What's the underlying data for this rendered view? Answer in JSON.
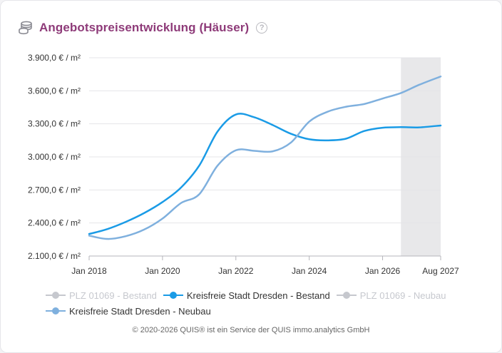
{
  "header": {
    "title": "Angebotspreisentwicklung (Häuser)",
    "help_label": "?"
  },
  "legend": [
    {
      "label": "PLZ 01069 - Bestand",
      "color": "#c6c8ce",
      "active": false
    },
    {
      "label": "Kreisfreie Stadt Dresden - Bestand",
      "color": "#1a9be6",
      "active": true
    },
    {
      "label": "PLZ 01069 - Neubau",
      "color": "#c6c8ce",
      "active": false
    },
    {
      "label": "Kreisfreie Stadt Dresden - Neubau",
      "color": "#7fb0de",
      "active": true
    }
  ],
  "footer": "© 2020-2026 QUIS® ist ein Service der QUIS immo.analytics GmbH",
  "chart_data": {
    "type": "line",
    "title": "Angebotspreisentwicklung (Häuser)",
    "ylim": [
      2100,
      3900
    ],
    "yticks": [
      2100,
      2400,
      2700,
      3000,
      3300,
      3600,
      3900
    ],
    "ytick_labels": [
      "2.100,0 € / m²",
      "2.400,0 € / m²",
      "2.700,0 € / m²",
      "3.000,0 € / m²",
      "3.300,0 € / m²",
      "3.600,0 € / m²",
      "3.900,0 € / m²"
    ],
    "xlim": [
      "2018-01",
      "2027-08"
    ],
    "xticks": [
      "2018-01",
      "2020-01",
      "2022-01",
      "2024-01",
      "2026-01",
      "2027-08"
    ],
    "xtick_labels": [
      "Jan 2018",
      "Jan 2020",
      "Jan 2022",
      "Jan 2024",
      "Jan 2026",
      "Aug 2027"
    ],
    "forecast_band": [
      "2026-07",
      "2027-08"
    ],
    "grid": true,
    "series": [
      {
        "name": "Kreisfreie Stadt Dresden - Bestand",
        "color": "#1a9be6",
        "points": [
          [
            "2018-01",
            2300
          ],
          [
            "2018-07",
            2345
          ],
          [
            "2019-01",
            2410
          ],
          [
            "2019-07",
            2490
          ],
          [
            "2020-01",
            2590
          ],
          [
            "2020-07",
            2720
          ],
          [
            "2021-01",
            2920
          ],
          [
            "2021-07",
            3230
          ],
          [
            "2022-01",
            3385
          ],
          [
            "2022-07",
            3360
          ],
          [
            "2023-01",
            3290
          ],
          [
            "2023-07",
            3210
          ],
          [
            "2024-01",
            3160
          ],
          [
            "2024-07",
            3150
          ],
          [
            "2025-01",
            3165
          ],
          [
            "2025-07",
            3235
          ],
          [
            "2026-01",
            3265
          ],
          [
            "2026-07",
            3270
          ],
          [
            "2027-01",
            3268
          ],
          [
            "2027-08",
            3285
          ]
        ]
      },
      {
        "name": "Kreisfreie Stadt Dresden - Neubau",
        "color": "#7fb0de",
        "points": [
          [
            "2018-01",
            2285
          ],
          [
            "2018-07",
            2255
          ],
          [
            "2019-01",
            2280
          ],
          [
            "2019-07",
            2340
          ],
          [
            "2020-01",
            2440
          ],
          [
            "2020-07",
            2580
          ],
          [
            "2021-01",
            2660
          ],
          [
            "2021-07",
            2920
          ],
          [
            "2022-01",
            3060
          ],
          [
            "2022-07",
            3055
          ],
          [
            "2023-01",
            3050
          ],
          [
            "2023-07",
            3130
          ],
          [
            "2024-01",
            3320
          ],
          [
            "2024-07",
            3410
          ],
          [
            "2025-01",
            3455
          ],
          [
            "2025-07",
            3480
          ],
          [
            "2026-01",
            3530
          ],
          [
            "2026-07",
            3580
          ],
          [
            "2027-01",
            3655
          ],
          [
            "2027-08",
            3730
          ]
        ]
      }
    ]
  }
}
